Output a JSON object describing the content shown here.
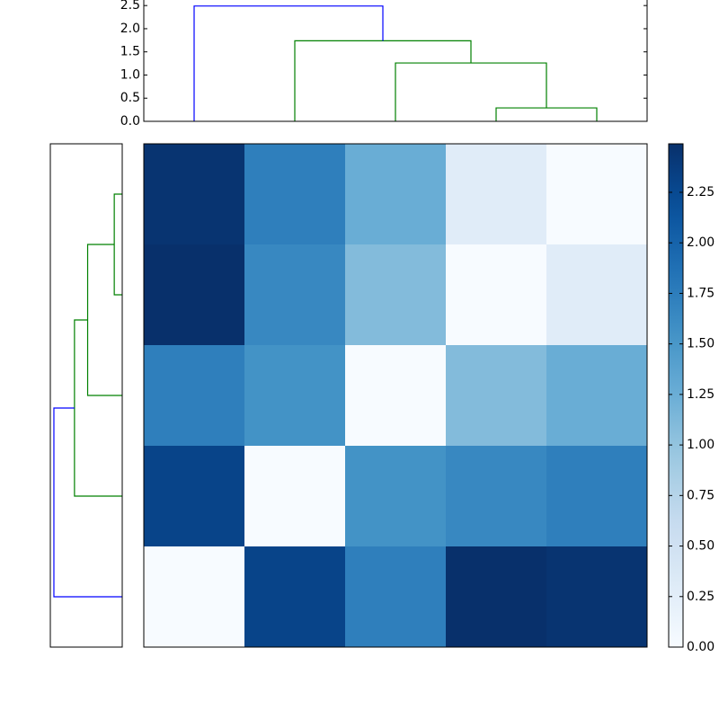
{
  "chart_data": {
    "type": "heatmap",
    "values": [
      [
        2.45,
        1.74,
        1.26,
        0.29,
        0
      ],
      [
        2.49,
        1.65,
        1.1,
        0,
        0.29
      ],
      [
        1.74,
        1.55,
        0,
        1.1,
        1.26
      ],
      [
        2.3,
        0,
        1.55,
        1.65,
        1.74
      ],
      [
        0,
        2.3,
        1.74,
        2.49,
        2.45
      ]
    ],
    "colormap": "Blues",
    "clim": [
      0,
      2.49
    ],
    "colorbar_ticks": [
      {
        "value": 0,
        "label": "0.00"
      },
      {
        "value": 0.25,
        "label": "0.25"
      },
      {
        "value": 0.5,
        "label": "0.50"
      },
      {
        "value": 0.75,
        "label": "0.75"
      },
      {
        "value": 1,
        "label": "1.00"
      },
      {
        "value": 1.25,
        "label": "1.25"
      },
      {
        "value": 1.5,
        "label": "1.50"
      },
      {
        "value": 1.75,
        "label": "1.75"
      },
      {
        "value": 2,
        "label": "2.00"
      },
      {
        "value": 2.25,
        "label": "2.25"
      }
    ],
    "top_dendrogram": {
      "icoord": [
        [
          35,
          35,
          45,
          45
        ],
        [
          25,
          25,
          40,
          40
        ],
        [
          15,
          15,
          32.5,
          32.5
        ],
        [
          5,
          5,
          23.75,
          23.75
        ]
      ],
      "dcoord": [
        [
          0,
          0.29,
          0.29,
          0
        ],
        [
          0,
          1.26,
          1.26,
          0.29
        ],
        [
          0,
          1.74,
          1.74,
          1.26
        ],
        [
          0,
          2.49,
          2.49,
          1.74
        ]
      ],
      "colors": [
        "#008000",
        "#008000",
        "#008000",
        "#0000ff"
      ],
      "xlim": [
        0,
        50
      ],
      "ylim": [
        0,
        2.62
      ],
      "yticks": [
        {
          "value": 0,
          "label": "0.0"
        },
        {
          "value": 0.5,
          "label": "0.5"
        },
        {
          "value": 1,
          "label": "1.0"
        },
        {
          "value": 1.5,
          "label": "1.5"
        },
        {
          "value": 2,
          "label": "2.0"
        },
        {
          "value": 2.5,
          "label": "2.5"
        }
      ]
    },
    "left_dendrogram": {
      "icoord": [
        [
          35,
          35,
          45,
          45
        ],
        [
          25,
          25,
          40,
          40
        ],
        [
          15,
          15,
          32.5,
          32.5
        ],
        [
          5,
          5,
          23.75,
          23.75
        ]
      ],
      "dcoord": [
        [
          0,
          0.29,
          0.29,
          0
        ],
        [
          0,
          1.26,
          1.26,
          0.29
        ],
        [
          0,
          1.74,
          1.74,
          1.26
        ],
        [
          0,
          2.49,
          2.49,
          1.74
        ]
      ],
      "colors": [
        "#008000",
        "#008000",
        "#008000",
        "#0000ff"
      ],
      "xlim": [
        2.62,
        0
      ],
      "ylim": [
        0,
        50
      ]
    }
  }
}
